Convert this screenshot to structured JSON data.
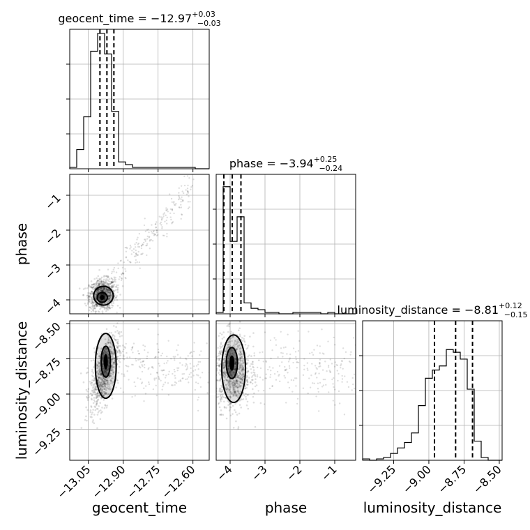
{
  "chart_data": {
    "type": "corner",
    "params": [
      {
        "key": "geocent_time",
        "label": "geocent_time",
        "title_main": "geocent_time = −12.97",
        "title_sup": "+0.03",
        "title_sub": "−0.03",
        "median": -12.97,
        "q_low": -13.0,
        "q_high": -12.94,
        "range": [
          -13.13,
          -12.53
        ],
        "ticks": [
          -13.05,
          -12.9,
          -12.75,
          -12.6
        ],
        "tick_labels": [
          "−13.05",
          "−12.90",
          "−12.75",
          "−12.60"
        ]
      },
      {
        "key": "phase",
        "label": "phase",
        "title_main": "phase = −3.94",
        "title_sup": "+0.25",
        "title_sub": "−0.24",
        "median": -3.94,
        "q_low": -4.18,
        "q_high": -3.69,
        "range": [
          -4.4,
          -0.4
        ],
        "ticks": [
          -4,
          -3,
          -2,
          -1
        ],
        "tick_labels": [
          "−4",
          "−3",
          "−2",
          "−1"
        ]
      },
      {
        "key": "luminosity_distance",
        "label": "luminosity_distance",
        "title_main": "luminosity_distance = −8.81",
        "title_sup": "+0.12",
        "title_sub": "−0.15",
        "median": -8.81,
        "q_low": -8.96,
        "q_high": -8.69,
        "range": [
          -9.47,
          -8.48
        ],
        "ticks": [
          -9.25,
          -9.0,
          -8.75,
          -8.5
        ],
        "tick_labels": [
          "−9.25",
          "−9.00",
          "−8.75",
          "−8.50"
        ]
      }
    ],
    "histograms": {
      "geocent_time": [
        0.01,
        0.14,
        0.38,
        0.86,
        0.99,
        0.84,
        0.42,
        0.05,
        0.03,
        0.01,
        0.01,
        0.01,
        0.01,
        0.01,
        0.01,
        0.01,
        0.01,
        0.01,
        0.0,
        0.0
      ],
      "phase": [
        0.01,
        0.93,
        0.53,
        0.71,
        0.08,
        0.04,
        0.03,
        0.01,
        0.01,
        0.0,
        0.0,
        0.01,
        0.01,
        0.01,
        0.01,
        0.0,
        0.01,
        0.0,
        0.0,
        0.0
      ],
      "luminosity_distance": [
        0.01,
        0.0,
        0.01,
        0.02,
        0.05,
        0.09,
        0.13,
        0.2,
        0.4,
        0.6,
        0.66,
        0.69,
        0.81,
        0.79,
        0.74,
        0.52,
        0.14,
        0.02,
        0.0,
        0.0
      ]
    },
    "scatter": [
      {
        "x": "geocent_time",
        "y": "phase",
        "core": {
          "mean": [
            -12.99,
            -3.85
          ],
          "sd": [
            0.028,
            0.22
          ],
          "corr": 0.1
        },
        "tail": {
          "from": [
            -12.95,
            -3.5
          ],
          "to": [
            -12.6,
            -0.7
          ],
          "spread": [
            0.03,
            0.35
          ]
        },
        "contours": [
          {
            "center": [
              -12.99,
              -3.93
            ],
            "radii": [
              0.022,
              0.14
            ],
            "level": "inner"
          },
          {
            "center": [
              -12.985,
              -3.88
            ],
            "radii": [
              0.042,
              0.27
            ],
            "level": "outer"
          }
        ]
      },
      {
        "x": "geocent_time",
        "y": "luminosity_distance",
        "core": {
          "mean": [
            -12.98,
            -8.84
          ],
          "sd": [
            0.03,
            0.13
          ],
          "corr": 0.55
        },
        "tail": {
          "from": [
            -12.92,
            -8.8
          ],
          "to": [
            -12.55,
            -8.85
          ],
          "spread": [
            0.1,
            0.18
          ]
        },
        "contours": [
          {
            "center": [
              -12.975,
              -8.77
            ],
            "radii": [
              0.02,
              0.11
            ],
            "level": "inner"
          },
          {
            "center": [
              -12.975,
              -8.8
            ],
            "radii": [
              0.045,
              0.23
            ],
            "level": "outer"
          }
        ]
      },
      {
        "x": "phase",
        "y": "luminosity_distance",
        "core": {
          "mean": [
            -3.92,
            -8.84
          ],
          "sd": [
            0.25,
            0.13
          ],
          "corr": 0.0
        },
        "tail": {
          "from": [
            -3.5,
            -8.8
          ],
          "to": [
            -0.5,
            -8.85
          ],
          "spread": [
            0.6,
            0.18
          ]
        },
        "contours": [
          {
            "center": [
              -3.95,
              -8.78
            ],
            "radii": [
              0.16,
              0.11
            ],
            "level": "inner"
          },
          {
            "center": [
              -3.9,
              -8.82
            ],
            "radii": [
              0.34,
              0.24
            ],
            "level": "outer"
          }
        ]
      }
    ]
  }
}
